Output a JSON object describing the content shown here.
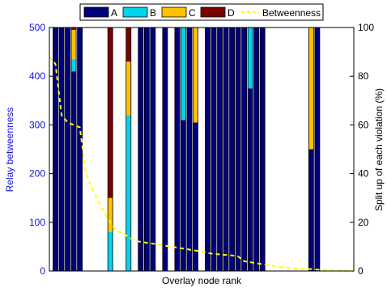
{
  "chart_data": {
    "type": "bar",
    "subtype": "stacked-bar-with-line",
    "title": "",
    "xlabel": "Overlay node rank",
    "ylabel_left": "Relay betweenness",
    "ylabel_right": "Split up of each violation (%)",
    "ylim_left": [
      0,
      500
    ],
    "ylim_right": [
      0,
      100
    ],
    "yticks_left": [
      "0",
      "100",
      "200",
      "300",
      "400",
      "500"
    ],
    "yticks_right": [
      "0",
      "20",
      "40",
      "60",
      "80",
      "100"
    ],
    "xlim": [
      0,
      50
    ],
    "grid": false,
    "legend_position": "top",
    "legend": {
      "entries": [
        {
          "label": "A",
          "color": "#00007a",
          "kind": "box"
        },
        {
          "label": "B",
          "color": "#00d4ee",
          "kind": "box"
        },
        {
          "label": "C",
          "color": "#ffc200",
          "kind": "box"
        },
        {
          "label": "D",
          "color": "#7a0000",
          "kind": "box"
        },
        {
          "label": "Betweenness",
          "color": "#ffff00",
          "kind": "dash"
        }
      ]
    },
    "series_colors": {
      "A": "#00007a",
      "B": "#00d4ee",
      "C": "#ffc200",
      "D": "#7a0000"
    },
    "bars": [
      {
        "x": 1,
        "A": 100,
        "B": 0,
        "C": 0,
        "D": 0
      },
      {
        "x": 2,
        "A": 100,
        "B": 0,
        "C": 0,
        "D": 0
      },
      {
        "x": 3,
        "A": 100,
        "B": 0,
        "C": 0,
        "D": 0
      },
      {
        "x": 4,
        "A": 82,
        "B": 5,
        "C": 12,
        "D": 1
      },
      {
        "x": 5,
        "A": 100,
        "B": 0,
        "C": 0,
        "D": 0
      },
      {
        "x": 10,
        "A": 0,
        "B": 16,
        "C": 14,
        "D": 70
      },
      {
        "x": 13,
        "A": 0,
        "B": 64,
        "C": 22,
        "D": 14
      },
      {
        "x": 15,
        "A": 100,
        "B": 0,
        "C": 0,
        "D": 0
      },
      {
        "x": 16,
        "A": 100,
        "B": 0,
        "C": 0,
        "D": 0
      },
      {
        "x": 17,
        "A": 100,
        "B": 0,
        "C": 0,
        "D": 0
      },
      {
        "x": 19,
        "A": 100,
        "B": 0,
        "C": 0,
        "D": 0
      },
      {
        "x": 21,
        "A": 100,
        "B": 0,
        "C": 0,
        "D": 0
      },
      {
        "x": 22,
        "A": 62,
        "B": 38,
        "C": 0,
        "D": 0
      },
      {
        "x": 23,
        "A": 100,
        "B": 0,
        "C": 0,
        "D": 0
      },
      {
        "x": 24,
        "A": 61,
        "B": 0,
        "C": 39,
        "D": 0
      },
      {
        "x": 26,
        "A": 100,
        "B": 0,
        "C": 0,
        "D": 0
      },
      {
        "x": 27,
        "A": 100,
        "B": 0,
        "C": 0,
        "D": 0
      },
      {
        "x": 28,
        "A": 100,
        "B": 0,
        "C": 0,
        "D": 0
      },
      {
        "x": 29,
        "A": 100,
        "B": 0,
        "C": 0,
        "D": 0
      },
      {
        "x": 30,
        "A": 100,
        "B": 0,
        "C": 0,
        "D": 0
      },
      {
        "x": 31,
        "A": 100,
        "B": 0,
        "C": 0,
        "D": 0
      },
      {
        "x": 32,
        "A": 100,
        "B": 0,
        "C": 0,
        "D": 0
      },
      {
        "x": 33,
        "A": 75,
        "B": 25,
        "C": 0,
        "D": 0
      },
      {
        "x": 34,
        "A": 100,
        "B": 0,
        "C": 0,
        "D": 0
      },
      {
        "x": 35,
        "A": 100,
        "B": 0,
        "C": 0,
        "D": 0
      },
      {
        "x": 43,
        "A": 50,
        "B": 0,
        "C": 50,
        "D": 0
      },
      {
        "x": 44,
        "A": 100,
        "B": 0,
        "C": 0,
        "D": 0
      }
    ],
    "betweenness": {
      "x": [
        0,
        1,
        2,
        3,
        4,
        5,
        6,
        7,
        8,
        9,
        10,
        11,
        12,
        13,
        14,
        15,
        16,
        17,
        18,
        19,
        20,
        21,
        22,
        23,
        24,
        25,
        26,
        27,
        28,
        29,
        30,
        31,
        32,
        33,
        34,
        35,
        36,
        37,
        38,
        39,
        40,
        41,
        42,
        43,
        44,
        45,
        46,
        47,
        48,
        49,
        50
      ],
      "y": [
        440,
        425,
        320,
        305,
        300,
        295,
        200,
        170,
        145,
        120,
        100,
        82,
        78,
        70,
        62,
        60,
        58,
        56,
        55,
        52,
        50,
        48,
        46,
        44,
        42,
        40,
        37,
        35,
        34,
        33,
        32,
        30,
        20,
        18,
        16,
        14,
        12,
        10,
        8,
        7,
        6,
        5,
        5,
        4,
        3,
        2,
        2,
        1,
        1,
        0,
        0
      ]
    }
  }
}
